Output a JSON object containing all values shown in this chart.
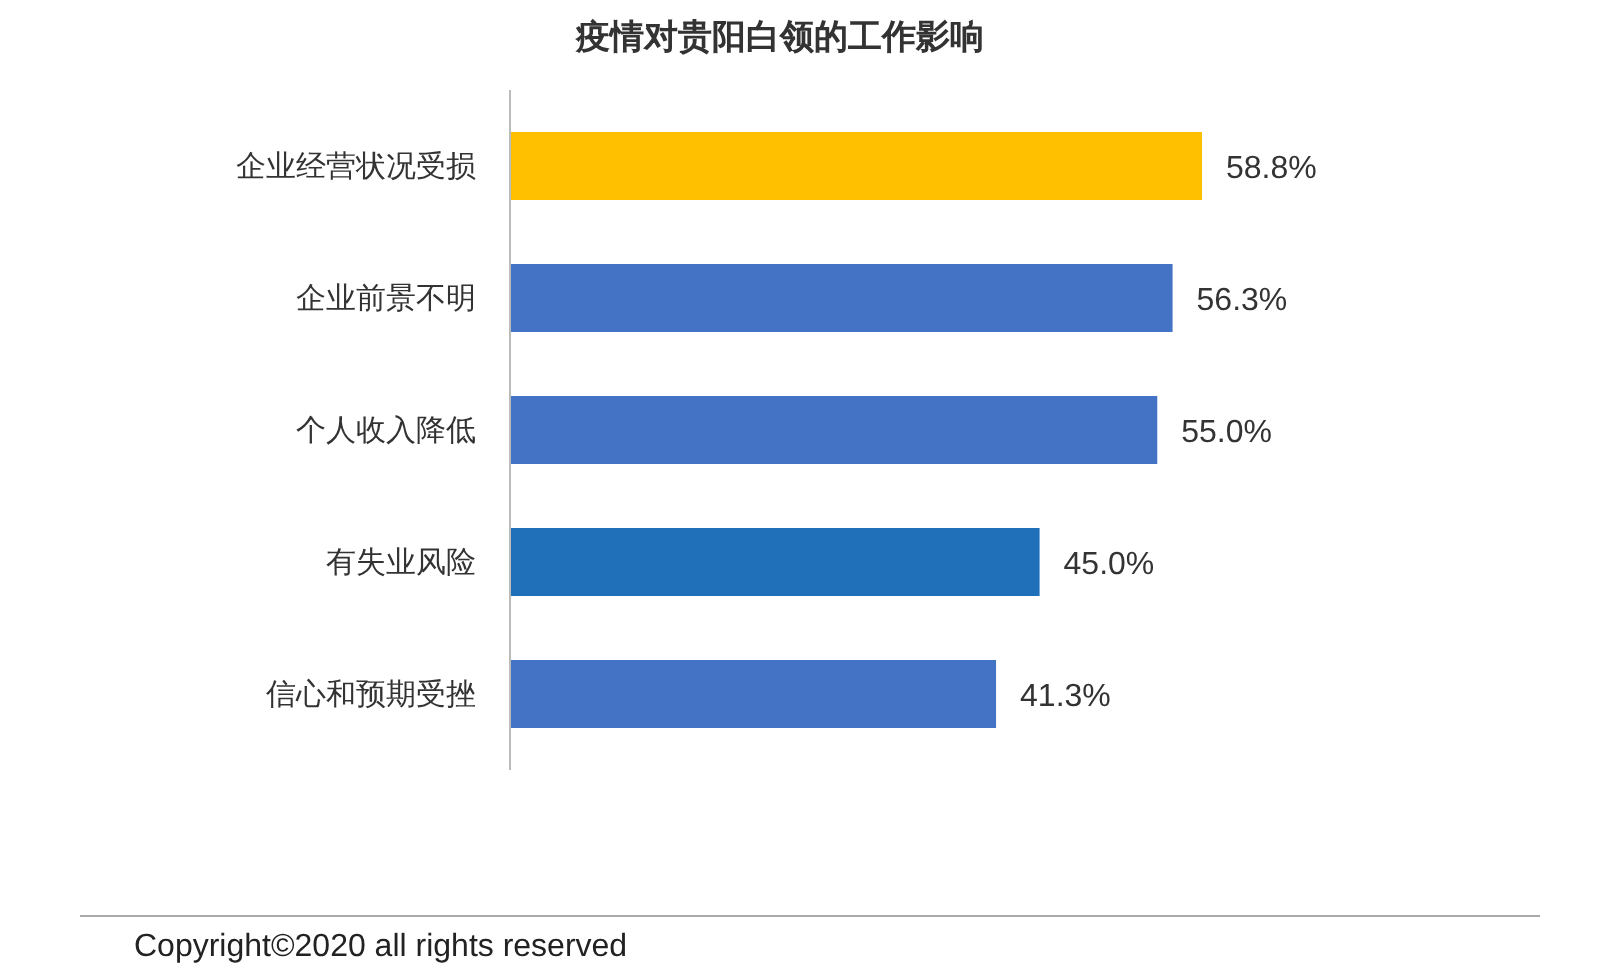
{
  "chart_data": {
    "type": "bar",
    "orientation": "horizontal",
    "title": "疫情对贵阳白领的工作影响",
    "categories": [
      "企业经营状况受损",
      "企业前景不明",
      "个人收入降低",
      "有失业风险",
      "信心和预期受挫"
    ],
    "values": [
      58.8,
      56.3,
      55.0,
      45.0,
      41.3
    ],
    "value_labels": [
      "58.8%",
      "56.3%",
      "55.0%",
      "45.0%",
      "41.3%"
    ],
    "colors": [
      "#ffc000",
      "#4472c4",
      "#4472c4",
      "#1f6fb9",
      "#4472c4"
    ],
    "annotations": [
      "Copyright©2020 all rights reserved"
    ]
  }
}
